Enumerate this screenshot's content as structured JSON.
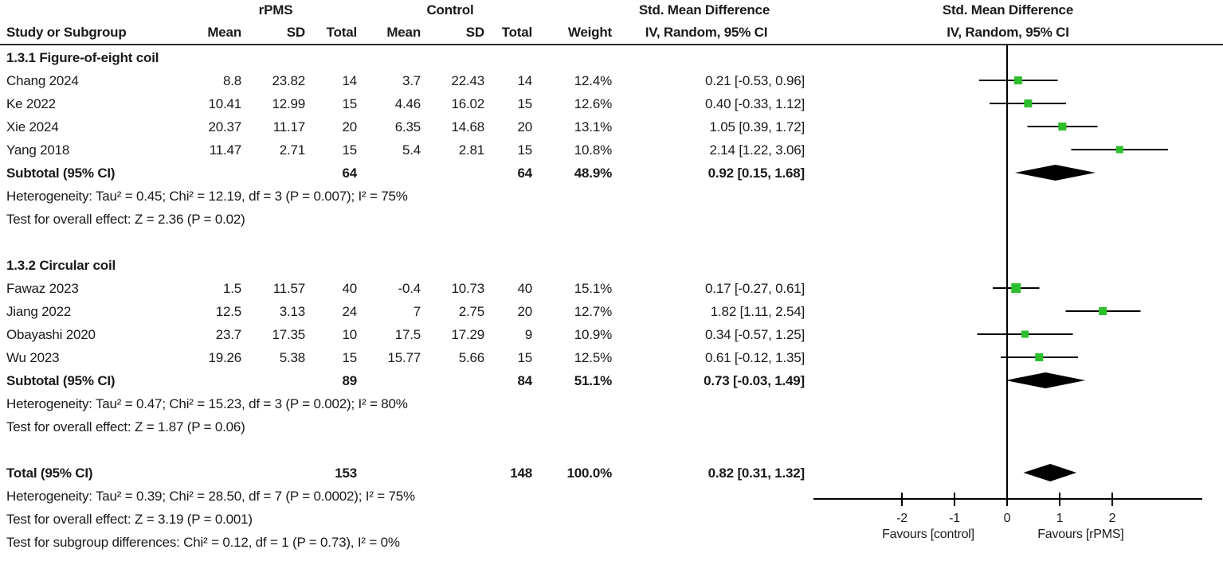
{
  "header": {
    "group_left": "rPMS",
    "group_right": "Control",
    "smd_table": "Std. Mean Difference",
    "smd_plot": "Std. Mean Difference",
    "col_study": "Study or Subgroup",
    "col_mean": "Mean",
    "col_sd": "SD",
    "col_total": "Total",
    "col_weight": "Weight",
    "col_ci": "IV, Random, 95% CI",
    "col_ci_plot": "IV, Random, 95% CI"
  },
  "chart_data": {
    "type": "forest",
    "effect_measure": "Std. Mean Difference (IV, Random, 95% CI)",
    "x_axis": {
      "ticks": [
        -2,
        -1,
        0,
        1,
        2
      ],
      "xlim": [
        -3.7,
        3.7
      ],
      "label_left": "Favours [control]",
      "label_right": "Favours [rPMS]"
    },
    "subgroups": [
      {
        "title": "1.3.1 Figure-of-eight coil",
        "studies": [
          {
            "name": "Chang 2024",
            "mean1": "8.8",
            "sd1": "23.82",
            "total1": "14",
            "mean2": "3.7",
            "sd2": "22.43",
            "total2": "14",
            "weight": "12.4%",
            "weight_val": 12.4,
            "ci_text": "0.21 [-0.53, 0.96]",
            "smd": 0.21,
            "lo": -0.53,
            "hi": 0.96
          },
          {
            "name": "Ke 2022",
            "mean1": "10.41",
            "sd1": "12.99",
            "total1": "15",
            "mean2": "4.46",
            "sd2": "16.02",
            "total2": "15",
            "weight": "12.6%",
            "weight_val": 12.6,
            "ci_text": "0.40 [-0.33, 1.12]",
            "smd": 0.4,
            "lo": -0.33,
            "hi": 1.12
          },
          {
            "name": "Xie 2024",
            "mean1": "20.37",
            "sd1": "11.17",
            "total1": "20",
            "mean2": "6.35",
            "sd2": "14.68",
            "total2": "20",
            "weight": "13.1%",
            "weight_val": 13.1,
            "ci_text": "1.05 [0.39, 1.72]",
            "smd": 1.05,
            "lo": 0.39,
            "hi": 1.72
          },
          {
            "name": "Yang 2018",
            "mean1": "11.47",
            "sd1": "2.71",
            "total1": "15",
            "mean2": "5.4",
            "sd2": "2.81",
            "total2": "15",
            "weight": "10.8%",
            "weight_val": 10.8,
            "ci_text": "2.14 [1.22, 3.06]",
            "smd": 2.14,
            "lo": 1.22,
            "hi": 3.06
          }
        ],
        "subtotal": {
          "label": "Subtotal (95% CI)",
          "total1": "64",
          "total2": "64",
          "weight": "48.9%",
          "ci_text": "0.92 [0.15, 1.68]",
          "smd": 0.92,
          "lo": 0.15,
          "hi": 1.68
        },
        "heterogeneity": "Heterogeneity: Tau² = 0.45; Chi² = 12.19, df = 3 (P = 0.007); I² = 75%",
        "overall_effect": "Test for overall effect: Z = 2.36 (P = 0.02)"
      },
      {
        "title": "1.3.2 Circular coil",
        "studies": [
          {
            "name": "Fawaz 2023",
            "mean1": "1.5",
            "sd1": "11.57",
            "total1": "40",
            "mean2": "-0.4",
            "sd2": "10.73",
            "total2": "40",
            "weight": "15.1%",
            "weight_val": 15.1,
            "ci_text": "0.17 [-0.27, 0.61]",
            "smd": 0.17,
            "lo": -0.27,
            "hi": 0.61
          },
          {
            "name": "Jiang 2022",
            "mean1": "12.5",
            "sd1": "3.13",
            "total1": "24",
            "mean2": "7",
            "sd2": "2.75",
            "total2": "20",
            "weight": "12.7%",
            "weight_val": 12.7,
            "ci_text": "1.82 [1.11, 2.54]",
            "smd": 1.82,
            "lo": 1.11,
            "hi": 2.54
          },
          {
            "name": "Obayashi 2020",
            "mean1": "23.7",
            "sd1": "17.35",
            "total1": "10",
            "mean2": "17.5",
            "sd2": "17.29",
            "total2": "9",
            "weight": "10.9%",
            "weight_val": 10.9,
            "ci_text": "0.34 [-0.57, 1.25]",
            "smd": 0.34,
            "lo": -0.57,
            "hi": 1.25
          },
          {
            "name": "Wu 2023",
            "mean1": "19.26",
            "sd1": "5.38",
            "total1": "15",
            "mean2": "15.77",
            "sd2": "5.66",
            "total2": "15",
            "weight": "12.5%",
            "weight_val": 12.5,
            "ci_text": "0.61 [-0.12, 1.35]",
            "smd": 0.61,
            "lo": -0.12,
            "hi": 1.35
          }
        ],
        "subtotal": {
          "label": "Subtotal (95% CI)",
          "total1": "89",
          "total2": "84",
          "weight": "51.1%",
          "ci_text": "0.73 [-0.03, 1.49]",
          "smd": 0.73,
          "lo": -0.03,
          "hi": 1.49
        },
        "heterogeneity": "Heterogeneity: Tau² = 0.47; Chi² = 15.23, df = 3 (P = 0.002); I² = 80%",
        "overall_effect": "Test for overall effect: Z = 1.87 (P = 0.06)"
      }
    ],
    "total": {
      "label": "Total (95% CI)",
      "total1": "153",
      "total2": "148",
      "weight": "100.0%",
      "ci_text": "0.82 [0.31, 1.32]",
      "smd": 0.82,
      "lo": 0.31,
      "hi": 1.32
    },
    "total_heterogeneity": "Heterogeneity: Tau² = 0.39; Chi² = 28.50, df = 7 (P = 0.0002); I² = 75%",
    "total_overall_effect": "Test for overall effect: Z = 3.19 (P = 0.001)",
    "subgroup_differences": "Test for subgroup differences: Chi² = 0.12, df = 1 (P = 0.73), I² = 0%"
  },
  "colors": {
    "marker_green": "#2CBE2C",
    "diamond_black": "#000000",
    "line_black": "#000000",
    "text": "#1a1a1a"
  }
}
